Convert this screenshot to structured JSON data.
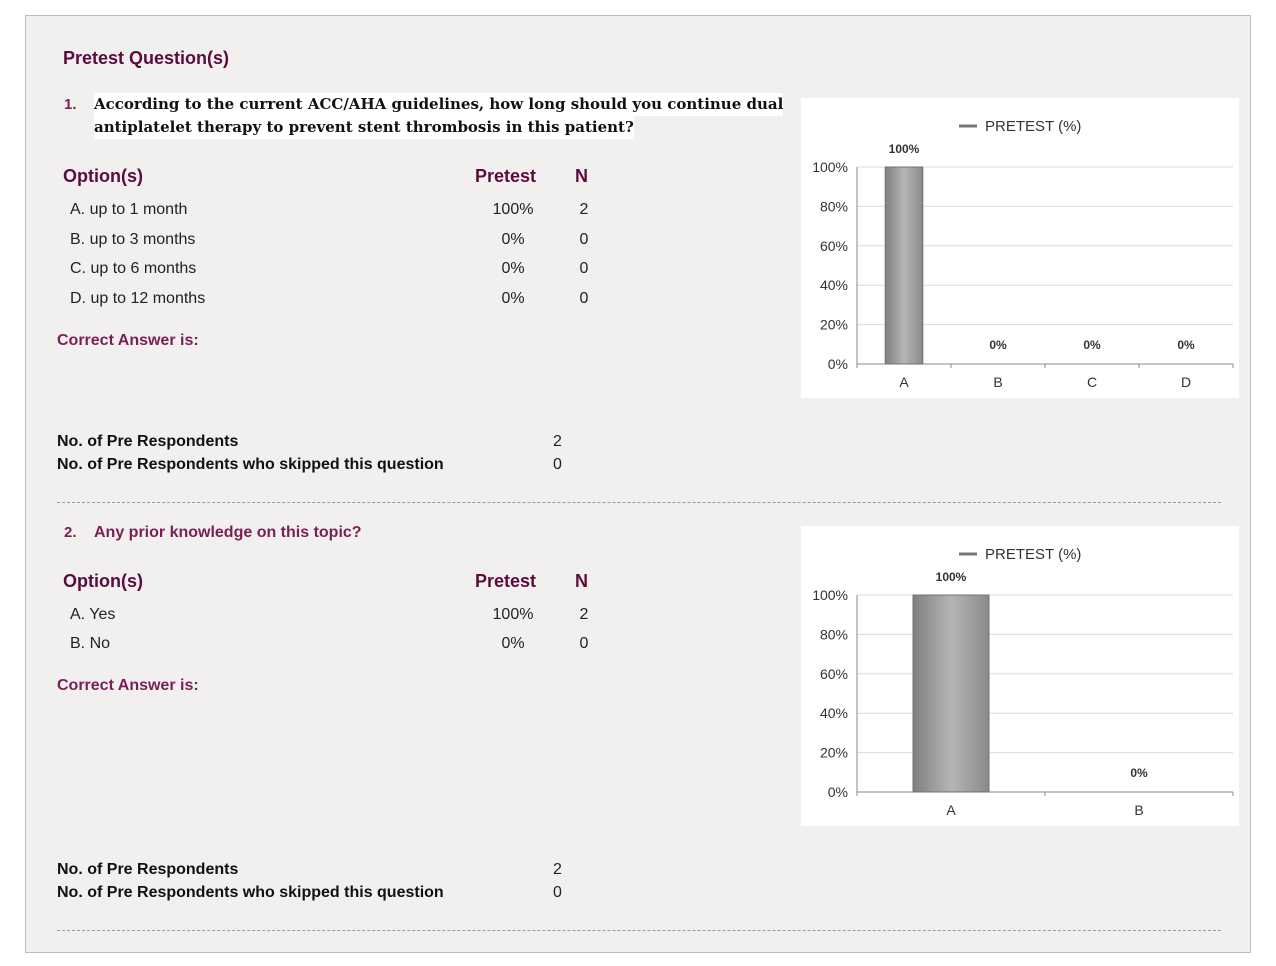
{
  "section_title": "Pretest Question(s)",
  "questions": [
    {
      "number": "1.",
      "text_line1": "According to the current ACC/AHA guidelines, how long should you continue dual",
      "text_line2": "antiplatelet therapy to prevent stent thrombosis in this patient?",
      "options_header": "Option(s)",
      "pretest_header": "Pretest",
      "n_header": "N",
      "options": [
        {
          "label": "A. up to 1 month",
          "pretest": "100%",
          "n": "2"
        },
        {
          "label": "B. up to 3 months",
          "pretest": "0%",
          "n": "0"
        },
        {
          "label": "C. up to 6 months",
          "pretest": "0%",
          "n": "0"
        },
        {
          "label": "D. up to 12 months",
          "pretest": "0%",
          "n": "0"
        }
      ],
      "correct_answer_label": "Correct Answer is:",
      "respondents_label": "No. of Pre Respondents",
      "respondents_value": "2",
      "skipped_label": "No. of Pre Respondents who skipped this question",
      "skipped_value": "0"
    },
    {
      "number": "2.",
      "text": "Any prior knowledge on this topic?",
      "options_header": "Option(s)",
      "pretest_header": "Pretest",
      "n_header": "N",
      "options": [
        {
          "label": "A. Yes",
          "pretest": "100%",
          "n": "2"
        },
        {
          "label": "B. No",
          "pretest": "0%",
          "n": "0"
        }
      ],
      "correct_answer_label": "Correct Answer is:",
      "respondents_label": "No. of Pre Respondents",
      "respondents_value": "2",
      "skipped_label": "No. of Pre Respondents who skipped this question",
      "skipped_value": "0"
    }
  ],
  "chart_data": [
    {
      "type": "bar",
      "categories": [
        "A",
        "B",
        "C",
        "D"
      ],
      "series": [
        {
          "name": "PRETEST (%)",
          "values": [
            100,
            0,
            0,
            0
          ]
        }
      ],
      "data_labels": [
        "100%",
        "0%",
        "0%",
        "0%"
      ],
      "yticks": [
        "0%",
        "20%",
        "40%",
        "60%",
        "80%",
        "100%"
      ],
      "ylim": [
        0,
        100
      ],
      "grid": true,
      "legend": "top-center",
      "bar_color": "#9a9a9a"
    },
    {
      "type": "bar",
      "categories": [
        "A",
        "B"
      ],
      "series": [
        {
          "name": "PRETEST (%)",
          "values": [
            100,
            0
          ]
        }
      ],
      "data_labels": [
        "100%",
        "0%"
      ],
      "yticks": [
        "0%",
        "20%",
        "40%",
        "60%",
        "80%",
        "100%"
      ],
      "ylim": [
        0,
        100
      ],
      "grid": true,
      "legend": "top-center",
      "bar_color": "#9a9a9a"
    }
  ]
}
